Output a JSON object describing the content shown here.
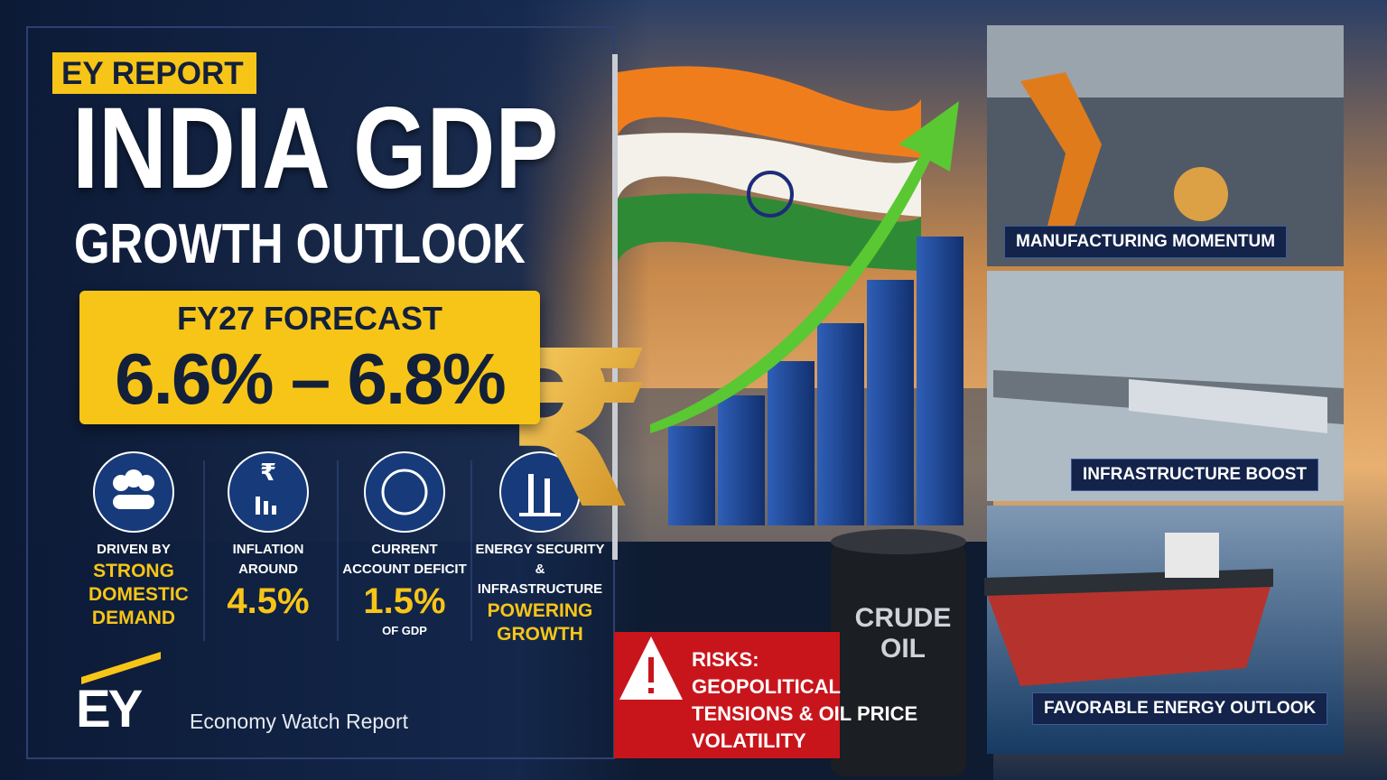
{
  "badge": "EY REPORT",
  "title": "INDIA GDP",
  "subtitle": "GROWTH OUTLOOK",
  "forecast": {
    "label": "FY27 FORECAST",
    "value": "6.6% – 6.8%"
  },
  "currency_symbol": "₹",
  "stats": [
    {
      "label": "DRIVEN BY",
      "highlight": "STRONG DOMESTIC DEMAND"
    },
    {
      "label": "INFLATION AROUND",
      "highlight": "4.5%"
    },
    {
      "label": "CURRENT ACCOUNT DEFICIT",
      "highlight": "1.5%",
      "note": "OF GDP"
    },
    {
      "label": "ENERGY SECURITY & INFRASTRUCTURE",
      "highlight": "POWERING GROWTH"
    }
  ],
  "logo": "EY",
  "footer": "Economy Watch Report",
  "barrel": "CRUDE OIL",
  "risks": {
    "heading": "RISKS:",
    "text": "GEOPOLITICAL TENSIONS & OIL PRICE VOLATILITY"
  },
  "panels": [
    "MANUFACTURING MOMENTUM",
    "INFRASTRUCTURE BOOST",
    "FAVORABLE ENERGY OUTLOOK"
  ]
}
